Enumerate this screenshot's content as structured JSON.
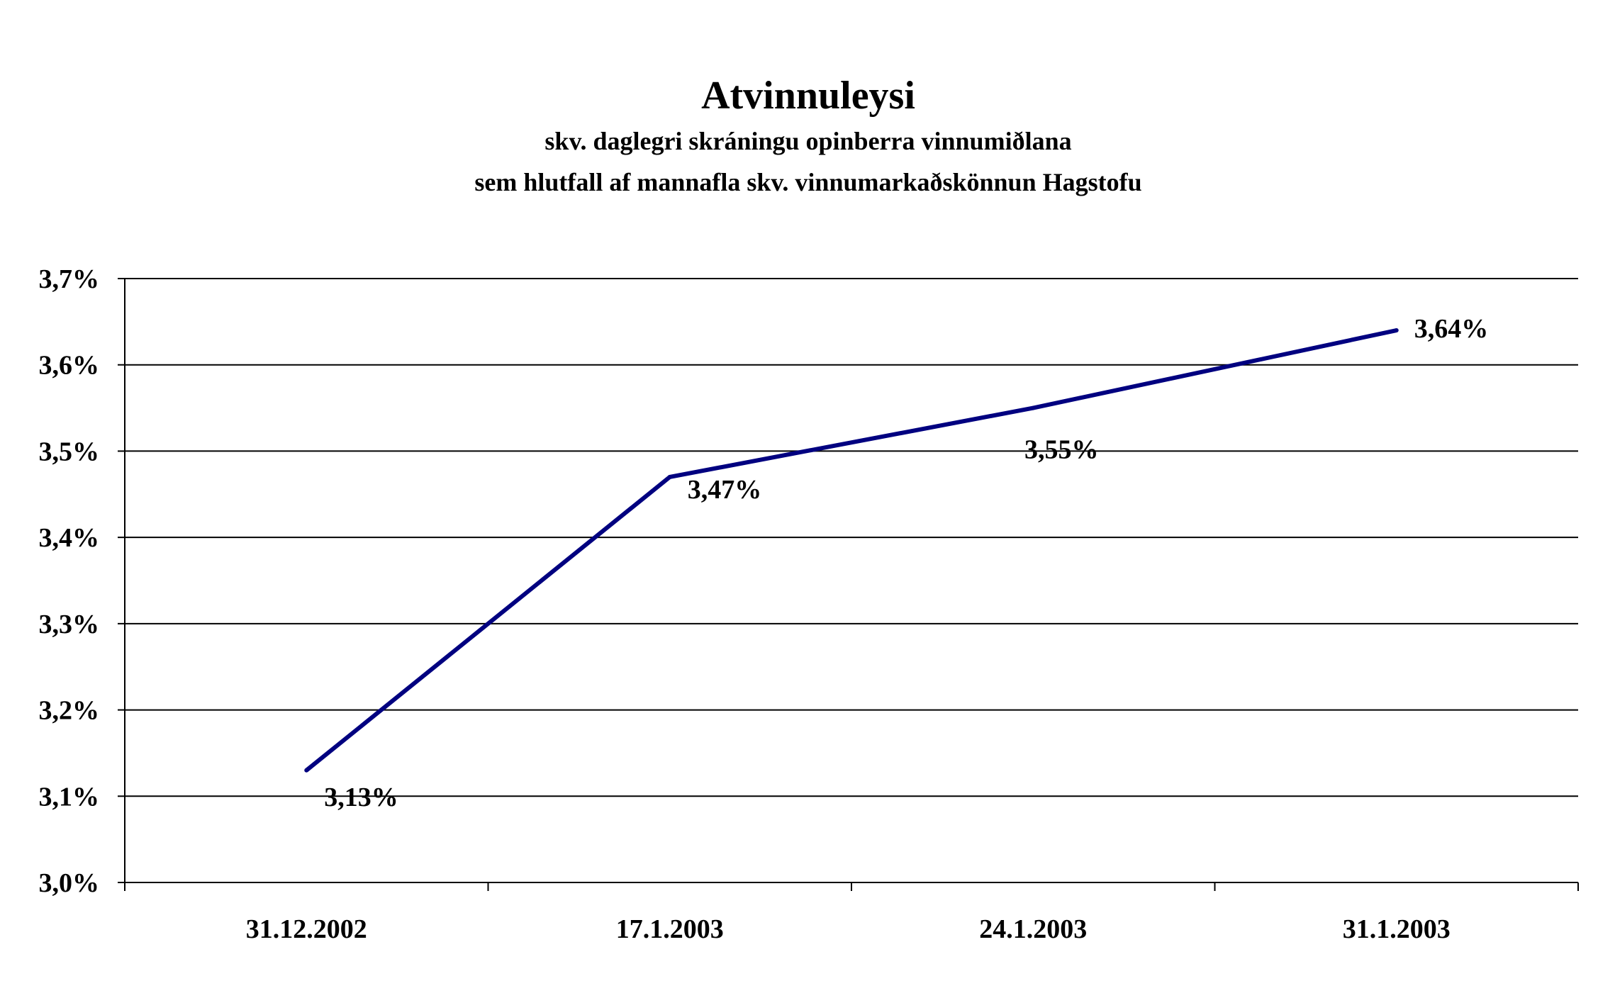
{
  "chart_data": {
    "type": "line",
    "title": "Atvinnuleysi",
    "subtitle_lines": [
      "skv. daglegri skráningu opinberra vinnumiðlana",
      "sem hlutfall af mannafla skv. vinnumarkaðskönnun Hagstofu"
    ],
    "categories": [
      "31.12.2002",
      "17.1.2003",
      "24.1.2003",
      "31.1.2003"
    ],
    "series": [
      {
        "values": [
          3.13,
          3.47,
          3.55,
          3.64
        ],
        "color": "#000080"
      }
    ],
    "data_labels": [
      "3,13%",
      "3,47%",
      "3,55%",
      "3,64%"
    ],
    "y_ticks": [
      3.0,
      3.1,
      3.2,
      3.3,
      3.4,
      3.5,
      3.6,
      3.7
    ],
    "y_tick_labels": [
      "3,0%",
      "3,1%",
      "3,2%",
      "3,3%",
      "3,4%",
      "3,5%",
      "3,6%",
      "3,7%"
    ],
    "ylim": [
      3.0,
      3.7
    ],
    "grid": true,
    "legend": "none"
  }
}
